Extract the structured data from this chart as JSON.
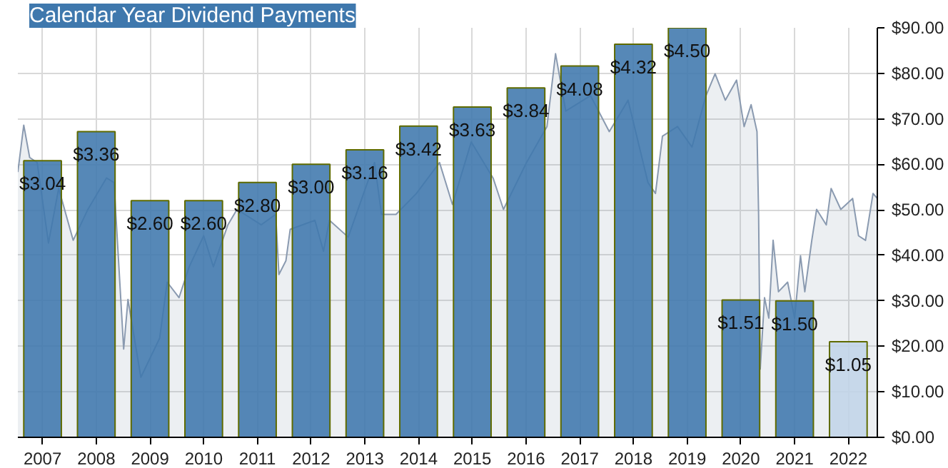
{
  "chart_data": {
    "type": "bar",
    "title": "Calendar Year Dividend Payments",
    "series": [
      {
        "type": "area",
        "color": "#8a9ab0",
        "x": [
          2006.54,
          2006.65,
          2006.76,
          2006.9,
          2007.11,
          2007.3,
          2007.57,
          2007.84,
          2008.19,
          2008.33,
          2008.46,
          2008.51,
          2008.59,
          2008.83,
          2009.18,
          2009.32,
          2009.54,
          2009.73,
          2010.0,
          2010.18,
          2010.45,
          2010.62,
          2011.07,
          2011.34,
          2011.4,
          2011.53,
          2011.61,
          2012.07,
          2012.23,
          2012.34,
          2012.69,
          2013.18,
          2013.31,
          2013.58,
          2013.96,
          2014.39,
          2014.63,
          2014.98,
          2015.39,
          2015.58,
          2016.01,
          2016.39,
          2016.55,
          2016.74,
          2017.2,
          2017.55,
          2017.9,
          2018.27,
          2018.41,
          2018.54,
          2018.82,
          2019.09,
          2019.35,
          2019.52,
          2019.71,
          2019.92,
          2020.06,
          2020.19,
          2020.3,
          2020.33,
          2020.36,
          2020.44,
          2020.52,
          2020.6,
          2020.7,
          2020.87,
          2021.0,
          2021.11,
          2021.19,
          2021.32,
          2021.41,
          2021.59,
          2021.68,
          2021.86,
          2022.08,
          2022.19,
          2022.32,
          2022.46,
          2022.54
        ],
        "values": [
          58.3,
          68.6,
          61.5,
          60.4,
          42.7,
          54.7,
          43.3,
          50,
          57,
          56,
          29.6,
          19.4,
          30.3,
          13.2,
          21.8,
          34.1,
          30.7,
          37.5,
          44.3,
          37.5,
          46.7,
          50.1,
          46.7,
          49,
          35.8,
          38.8,
          45.7,
          47.7,
          40.9,
          47.7,
          44,
          60.4,
          49,
          49,
          53.6,
          60.4,
          51.2,
          64.9,
          56.9,
          50.1,
          60.4,
          68.3,
          84.3,
          71.7,
          75.1,
          67.2,
          74.1,
          56,
          53.6,
          66.2,
          68.3,
          63.8,
          75.1,
          79.9,
          74.1,
          78.5,
          68.3,
          73.1,
          67.2,
          49,
          15,
          30.7,
          26.2,
          43.3,
          32,
          34.1,
          26.2,
          39.9,
          32,
          43.3,
          50.1,
          46.7,
          54.7,
          50.1,
          52.5,
          44.3,
          43.3,
          53.6,
          52.5
        ]
      },
      {
        "axis": "y2",
        "x": [
          2007,
          2008,
          2009,
          2010,
          2011,
          2012,
          2013,
          2014,
          2015,
          2016,
          2017,
          2018,
          2019,
          2020,
          2021,
          2022
        ],
        "values": [
          3.04,
          3.36,
          2.6,
          2.6,
          2.8,
          3.0,
          3.16,
          3.42,
          3.63,
          3.84,
          4.08,
          4.32,
          4.5,
          1.51,
          1.5,
          1.05
        ],
        "value_labels": [
          "$3.04",
          "$3.36",
          "$2.60",
          "$2.60",
          "$2.80",
          "$3.00",
          "$3.16",
          "$3.42",
          "$3.63",
          "$3.84",
          "$4.08",
          "$4.32",
          "$4.50",
          "$1.51",
          "$1.50",
          "$1.05"
        ],
        "colors": [
          "#3f78ad",
          "#3f78ad",
          "#3f78ad",
          "#3f78ad",
          "#3f78ad",
          "#3f78ad",
          "#3f78ad",
          "#3f78ad",
          "#3f78ad",
          "#3f78ad",
          "#3f78ad",
          "#3f78ad",
          "#3f78ad",
          "#3f78ad",
          "#3f78ad",
          "#c2d5e8"
        ]
      }
    ],
    "xlim": [
      2006.54,
      2022.54
    ],
    "xticks": [
      2007,
      2008,
      2009,
      2010,
      2011,
      2012,
      2013,
      2014,
      2015,
      2016,
      2017,
      2018,
      2019,
      2020,
      2021,
      2022
    ],
    "ylim": [
      0,
      90
    ],
    "yticks": [
      {
        "value": 0,
        "label": "$0.00"
      },
      {
        "value": 10,
        "label": "$10.00"
      },
      {
        "value": 20,
        "label": "$20.00"
      },
      {
        "value": 30,
        "label": "$30.00"
      },
      {
        "value": 40,
        "label": "$40.00"
      },
      {
        "value": 50,
        "label": "$50.00"
      },
      {
        "value": 60,
        "label": "$60.00"
      },
      {
        "value": 70,
        "label": "$70.00"
      },
      {
        "value": 80,
        "label": "$80.00"
      },
      {
        "value": 90,
        "label": "$90.00"
      }
    ],
    "y2lim": [
      0,
      4.5
    ],
    "grid": true
  }
}
